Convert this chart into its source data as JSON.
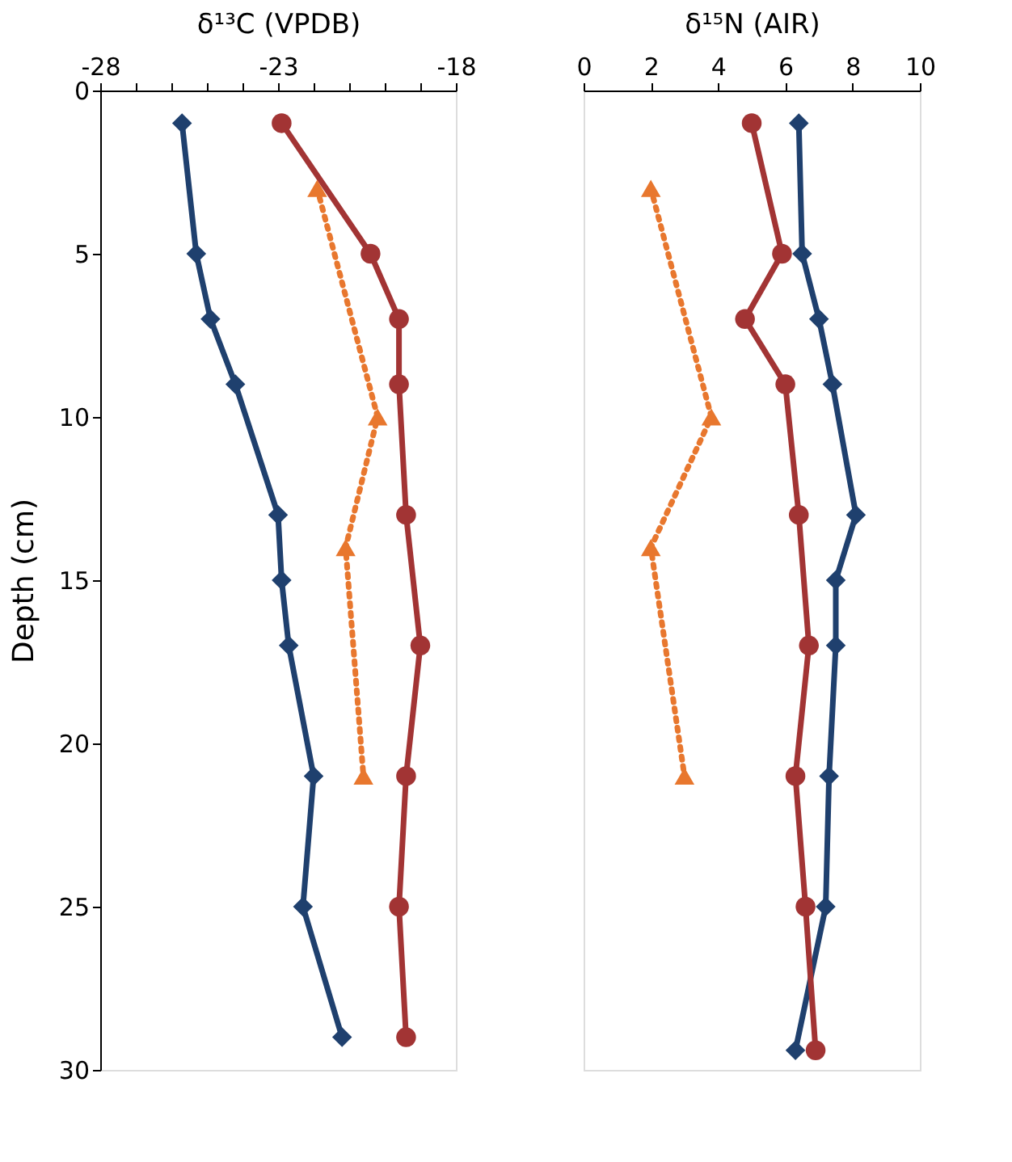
{
  "chart_data": [
    {
      "type": "line",
      "xlabel": "δ¹³C (VPDB)",
      "ylabel": "Depth (cm)",
      "xlim": [
        -28,
        -18
      ],
      "ylim": [
        30,
        0
      ],
      "xticks": [
        -28,
        {
          "value": -27,
          "label": null
        },
        {
          "value": -26,
          "label": null
        },
        {
          "value": -25,
          "label": null
        },
        {
          "value": -24,
          "label": null
        },
        -23,
        {
          "value": -22,
          "label": null
        },
        {
          "value": -21,
          "label": null
        },
        {
          "value": -20,
          "label": null
        },
        {
          "value": -19,
          "label": null
        },
        -18
      ],
      "yticks": [
        0,
        5,
        10,
        15,
        20,
        25,
        30
      ],
      "grid": false,
      "series": [
        {
          "color": "#1f406e",
          "marker": "diamond",
          "line_style": "solid",
          "x": [
            -25.7,
            -25.3,
            -24.9,
            -24.2,
            -23.0,
            -22.9,
            -22.7,
            -22.0,
            -22.3,
            -21.2
          ],
          "values": [
            1,
            5,
            7,
            9,
            13,
            15,
            17,
            21,
            25,
            29
          ]
        },
        {
          "color": "#a23434",
          "marker": "circle",
          "line_style": "solid",
          "x": [
            -22.9,
            -20.4,
            -19.6,
            -19.6,
            -19.4,
            -19.0,
            -19.4,
            -19.6,
            -19.4
          ],
          "values": [
            1,
            5,
            7,
            9,
            13,
            17,
            21,
            25,
            29
          ]
        },
        {
          "color": "#e8772e",
          "marker": "triangle",
          "line_style": "dotted",
          "x": [
            -21.9,
            -20.2,
            -21.1,
            -20.6
          ],
          "values": [
            3,
            10,
            14,
            21
          ]
        }
      ]
    },
    {
      "type": "line",
      "xlabel": "δ¹⁵N (AIR)",
      "xlim": [
        0,
        10
      ],
      "ylim": [
        30,
        0
      ],
      "xticks": [
        0,
        2,
        4,
        6,
        8,
        10
      ],
      "tick_labels": "x",
      "grid": false,
      "series": [
        {
          "color": "#1f406e",
          "marker": "diamond",
          "line_style": "solid",
          "x": [
            6.4,
            6.5,
            7.0,
            7.4,
            8.1,
            7.5,
            7.5,
            7.3,
            7.2,
            6.3
          ],
          "values": [
            1,
            5,
            7,
            9,
            13,
            15,
            17,
            21,
            25,
            29.4
          ]
        },
        {
          "color": "#a23434",
          "marker": "circle",
          "line_style": "solid",
          "x": [
            5.0,
            5.9,
            4.8,
            6.0,
            6.4,
            6.7,
            6.3,
            6.6,
            6.9
          ],
          "values": [
            1,
            5,
            7,
            9,
            13,
            17,
            21,
            25,
            29.4
          ]
        },
        {
          "color": "#e8772e",
          "marker": "triangle",
          "line_style": "dotted",
          "x": [
            2.0,
            3.8,
            2.0,
            3.0
          ],
          "values": [
            3,
            10,
            14,
            21
          ]
        }
      ]
    }
  ]
}
